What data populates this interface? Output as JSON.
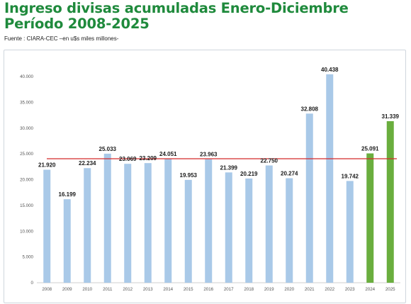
{
  "header": {
    "title_line1": "Ingreso divisas acumuladas Enero-Diciembre",
    "title_line2": "Período 2008-2025",
    "source": "Fuente : CIARA-CEC –en u$s miles millones-"
  },
  "chart_data": {
    "type": "bar",
    "categories": [
      "2008",
      "2009",
      "2010",
      "2011",
      "2012",
      "2013",
      "2014",
      "2015",
      "2016",
      "2017",
      "2018",
      "2019",
      "2020",
      "2021",
      "2022",
      "2023",
      "2024",
      "2025"
    ],
    "values": [
      21920,
      16199,
      22234,
      25033,
      23069,
      23209,
      24051,
      19953,
      23963,
      21399,
      20219,
      22750,
      20274,
      32808,
      40438,
      19742,
      25091,
      31339
    ],
    "value_labels": [
      "21.920",
      "16.199",
      "22.234",
      "25.033",
      "23.069",
      "23.209",
      "24.051",
      "19.953",
      "23.963",
      "21.399",
      "20.219",
      "22.750",
      "20.274",
      "32.808",
      "40.438",
      "19.742",
      "25.091",
      "31.339"
    ],
    "highlighted_categories": [
      "2024",
      "2025"
    ],
    "ylim": [
      0,
      40000
    ],
    "yticks": [
      0,
      5000,
      10000,
      15000,
      20000,
      25000,
      30000,
      35000,
      40000
    ],
    "ytick_labels": [
      "0",
      "5.000",
      "10.000",
      "15.000",
      "20.000",
      "25.000",
      "30.000",
      "35.000",
      "40.000"
    ],
    "reference_line_value": 24051,
    "grid": false,
    "xlabel": "",
    "ylabel": "",
    "colors": {
      "bar": "#a9c9e8",
      "bar_highlight": "#6aae3e",
      "reference_line": "#d42a2a",
      "title": "#1f8a3c"
    }
  }
}
